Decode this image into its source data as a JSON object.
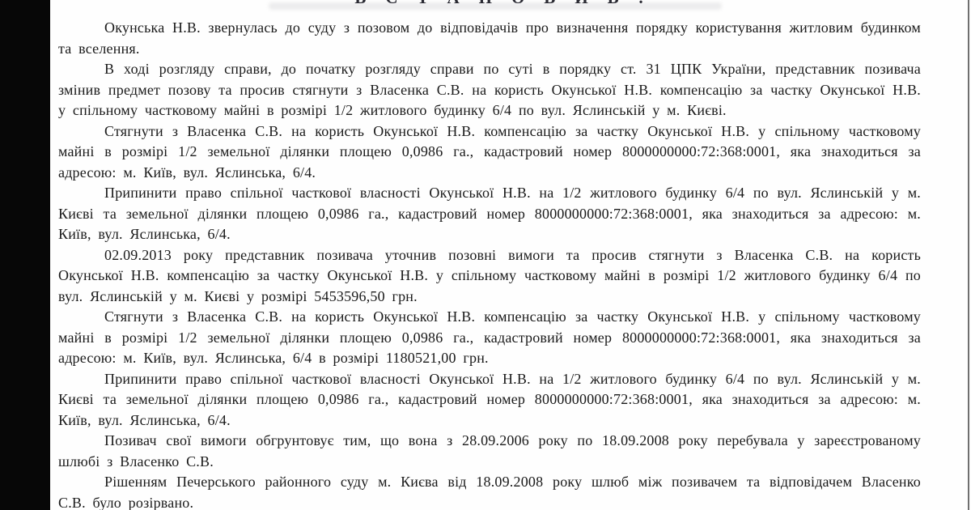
{
  "page": {
    "background_color": "#fdfdfd",
    "letterbox_color": "#070707",
    "text_color": "#1a1a1a",
    "type": "scanned-court-decision",
    "language": "uk"
  },
  "document": {
    "heading": "ВСТАНОВИВ:",
    "paragraphs": [
      "Окунська Н.В. звернулась до суду з позовом до відповідачів про визначення порядку користування житловим будинком та вселення.",
      "В ході розгляду справи, до початку розгляду справи по суті в порядку ст. 31 ЦПК України, представник позивача змінив предмет позову та просив стягнути з Власенка С.В. на користь Окунської Н.В. компенсацію за частку Окунської Н.В. у спільному частковому майні в розмірі 1/2 житлового будинку 6/4 по вул. Яслинській у м. Києві.",
      "Стягнути з Власенка С.В. на користь Окунської Н.В. компенсацію за частку Окунської Н.В. у спільному частковому майні в розмірі 1/2 земельної ділянки площею 0,0986 га., кадастровий номер 8000000000:72:368:0001, яка знаходиться за адресою: м. Київ, вул. Яслинська, 6/4.",
      "Припинити право спільної часткової власності Окунської Н.В. на 1/2 житлового будинку 6/4 по вул. Яслинській у м. Києві та земельної ділянки площею 0,0986 га., кадастровий номер 8000000000:72:368:0001, яка знаходиться за адресою: м. Київ, вул. Яслинська, 6/4.",
      "02.09.2013 року представник позивача уточнив позовні вимоги та просив стягнути з Власенка С.В. на користь Окунської Н.В. компенсацію за частку Окунської Н.В. у спільному частковому майні в розмірі 1/2 житлового будинку 6/4 по вул. Яслинській у м. Києві у розмірі 5453596,50 грн.",
      "Стягнути з Власенка С.В. на користь Окунської Н.В. компенсацію за частку Окунської Н.В. у спільному частковому майні в розмірі 1/2 земельної ділянки площею 0,0986 га., кадастровий номер 8000000000:72:368:0001, яка знаходиться за адресою: м. Київ, вул. Яслинська, 6/4 в розмірі 1180521,00 грн.",
      "Припинити право спільної часткової власності Окунської Н.В. на 1/2 житлового будинку 6/4 по вул. Яслинській у м. Києві та земельної ділянки площею 0,0986 га., кадастровий номер 8000000000:72:368:0001, яка знаходиться за адресою: м. Київ, вул. Яслинська, 6/4.",
      "Позивач свої вимоги обгрунтовує тим, що вона з 28.09.2006 року по 18.09.2008 року перебувала у зареєстрованому шлюбі з Власенко С.В.",
      "Рішенням Печерського районного суду м. Києва від 18.09.2008 року шлюб між позивачем та відповідачем Власенко С.В. було розірвано."
    ]
  }
}
